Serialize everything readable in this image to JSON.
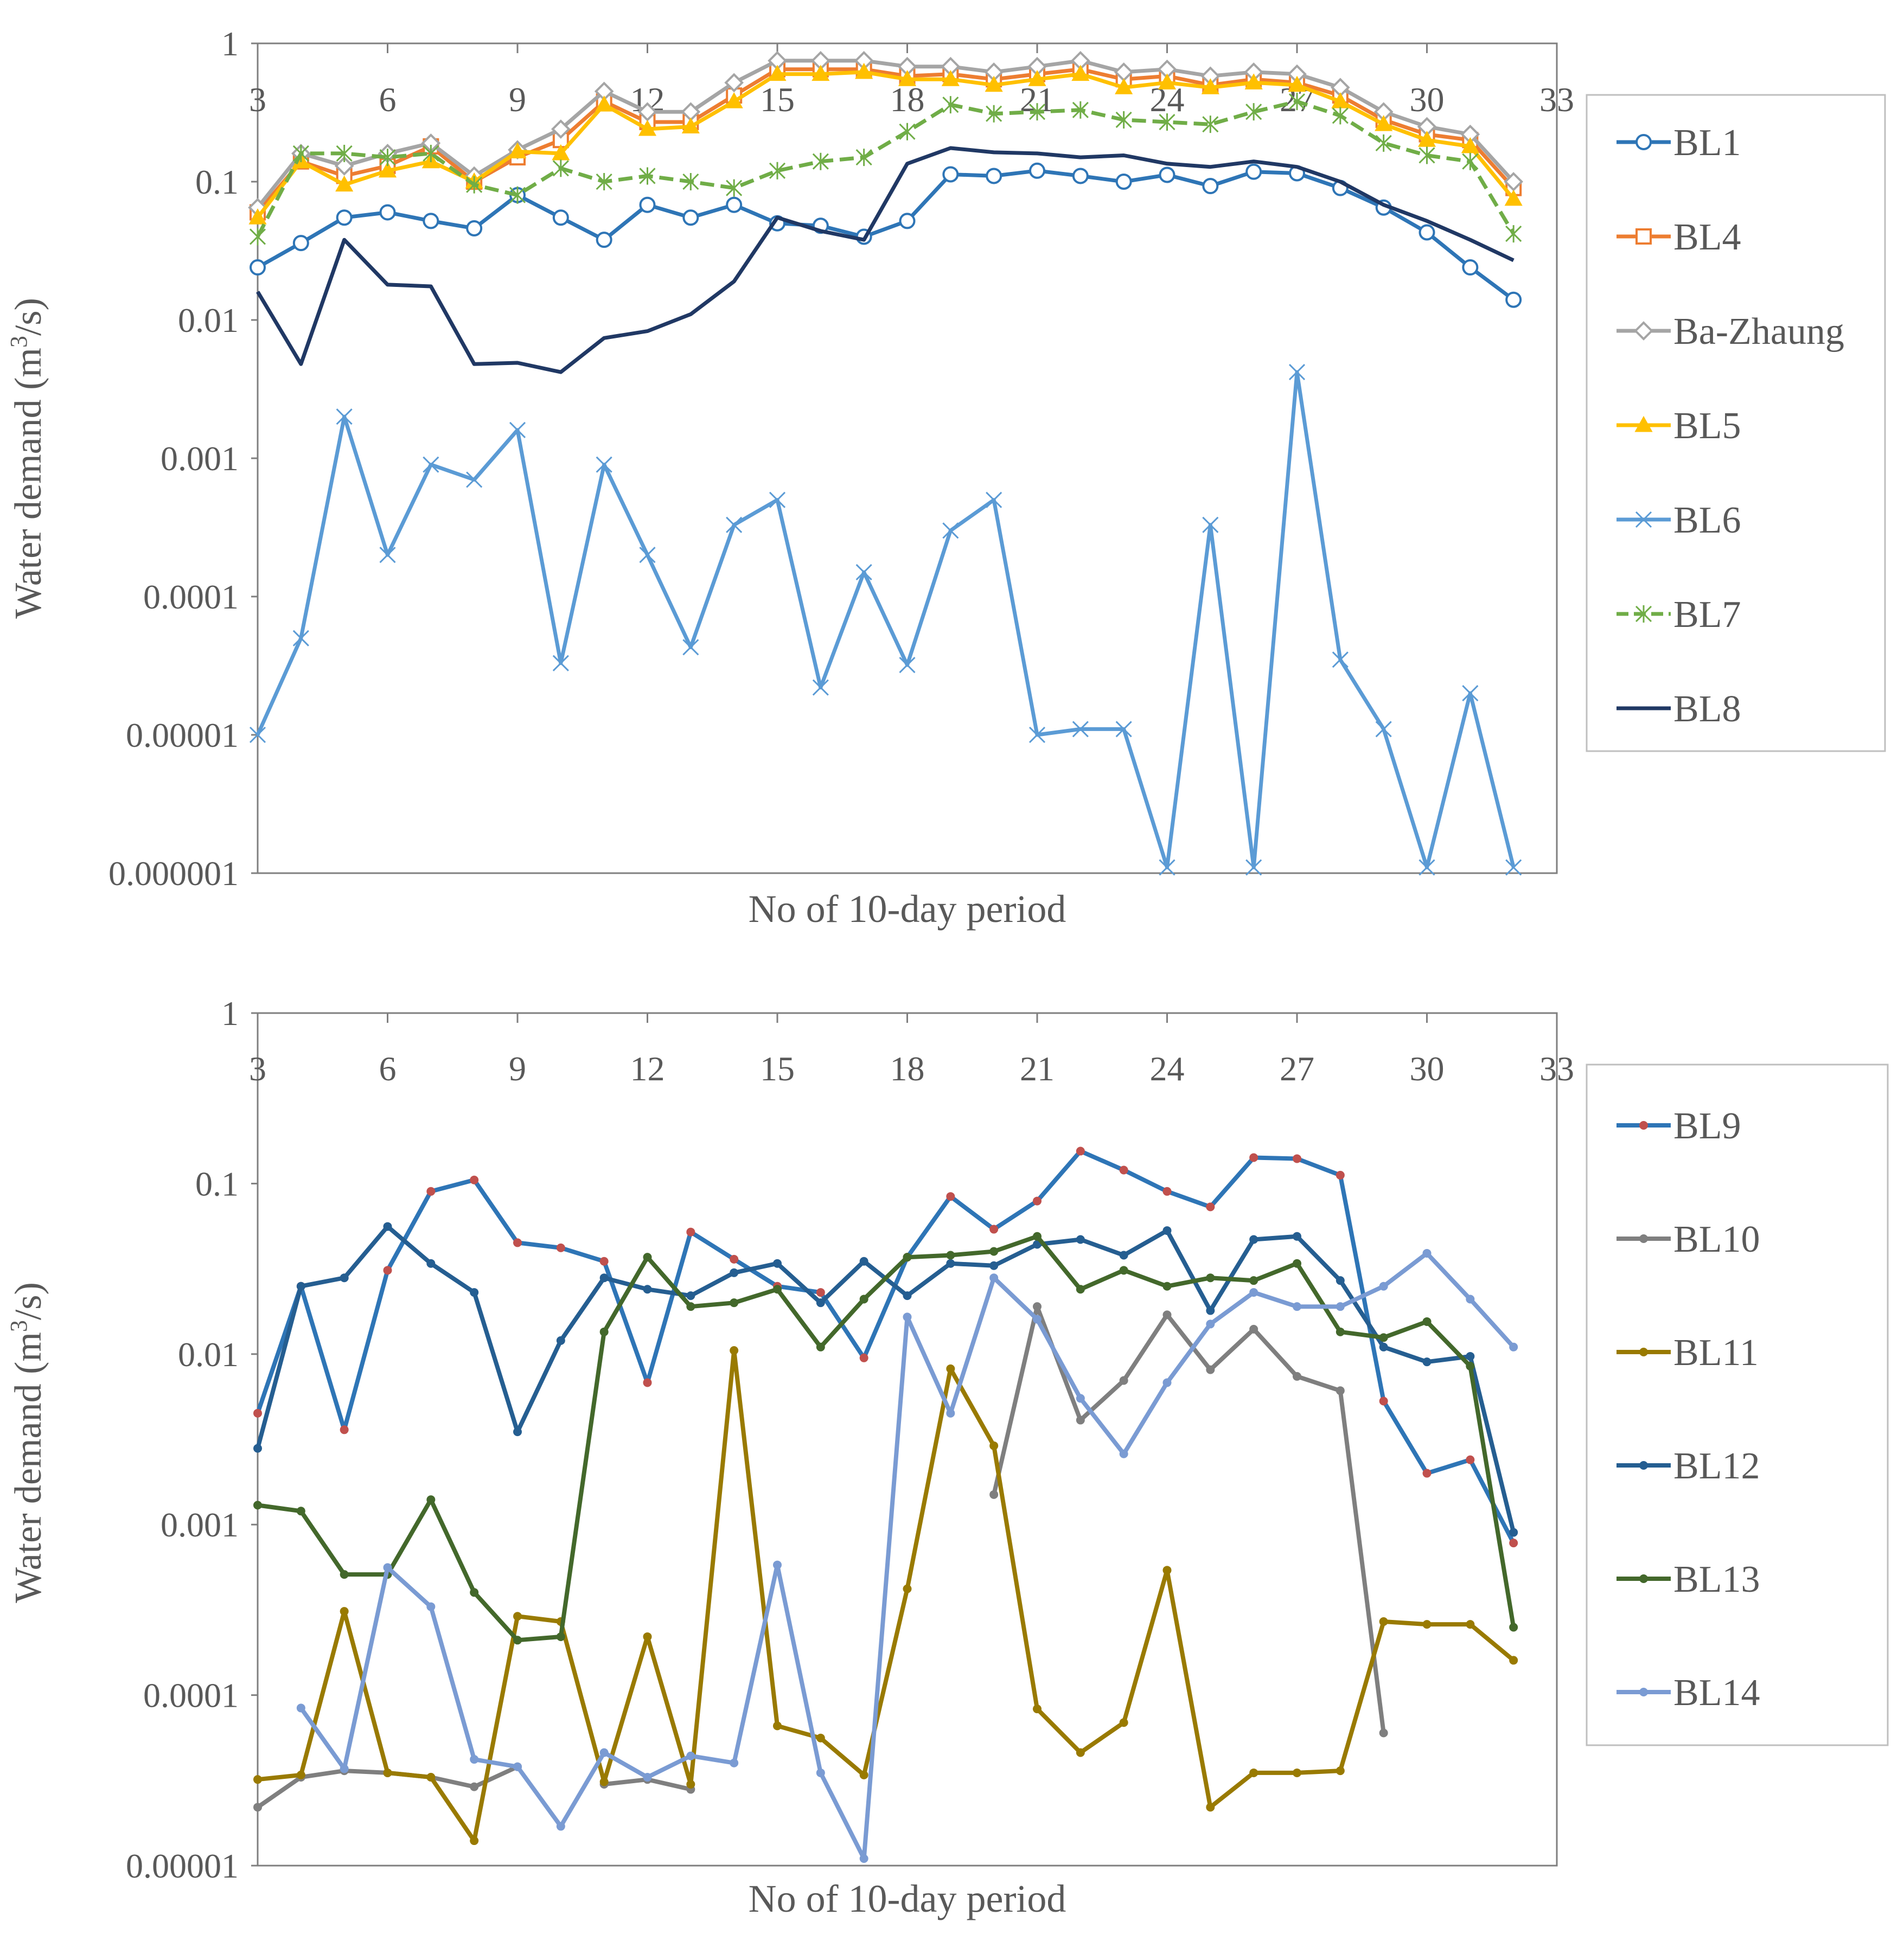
{
  "chart_data": [
    {
      "type": "line",
      "title": "",
      "xlabel": "No of 10-day period",
      "ylabel": "Water demand (m³/s)",
      "ylabel_main": "Water demand (m",
      "ylabel_sup": "3",
      "ylabel_end": "/s)",
      "yscale": "log",
      "ylim": [
        1e-06,
        1
      ],
      "xlim": [
        3,
        33
      ],
      "xticks": [
        3,
        6,
        9,
        12,
        15,
        18,
        21,
        24,
        27,
        30,
        33
      ],
      "xtick_labels": [
        "3",
        "6",
        "9",
        "12",
        "15",
        "18",
        "21",
        "24",
        "27",
        "30",
        "33"
      ],
      "yticks": [
        1e-06,
        1e-05,
        0.0001,
        0.001,
        0.01,
        0.1,
        1
      ],
      "ytick_labels": [
        "0.000001",
        "0.00001",
        "0.0001",
        "0.001",
        "0.01",
        "0.1",
        "1"
      ],
      "x": [
        3,
        4,
        5,
        6,
        7,
        8,
        9,
        10,
        11,
        12,
        13,
        14,
        15,
        16,
        17,
        18,
        19,
        20,
        21,
        22,
        23,
        24,
        25,
        26,
        27,
        28,
        29,
        30,
        31,
        32
      ],
      "series": [
        {
          "name": "BL1",
          "color": "#2e75b6",
          "marker": "circle",
          "values": [
            0.024,
            0.036,
            0.055,
            0.06,
            0.052,
            0.046,
            0.08,
            0.055,
            0.038,
            0.068,
            0.055,
            0.068,
            0.05,
            0.048,
            0.04,
            0.052,
            0.113,
            0.11,
            0.12,
            0.11,
            0.1,
            0.112,
            0.093,
            0.118,
            0.115,
            0.09,
            0.065,
            0.043,
            0.024,
            0.014
          ]
        },
        {
          "name": "BL4",
          "color": "#ed7d31",
          "marker": "square",
          "values": [
            0.06,
            0.14,
            0.11,
            0.13,
            0.18,
            0.1,
            0.15,
            0.2,
            0.38,
            0.27,
            0.27,
            0.42,
            0.65,
            0.65,
            0.65,
            0.58,
            0.6,
            0.55,
            0.6,
            0.65,
            0.55,
            0.58,
            0.5,
            0.55,
            0.52,
            0.42,
            0.28,
            0.22,
            0.2,
            0.09
          ]
        },
        {
          "name": "Ba-Zhaung",
          "color": "#a5a5a5",
          "marker": "diamond",
          "values": [
            0.065,
            0.16,
            0.13,
            0.16,
            0.19,
            0.11,
            0.17,
            0.24,
            0.45,
            0.32,
            0.32,
            0.52,
            0.75,
            0.75,
            0.75,
            0.68,
            0.68,
            0.62,
            0.68,
            0.75,
            0.62,
            0.65,
            0.58,
            0.62,
            0.6,
            0.48,
            0.32,
            0.25,
            0.22,
            0.1
          ]
        },
        {
          "name": "BL5",
          "color": "#ffc000",
          "marker": "triangle",
          "values": [
            0.055,
            0.14,
            0.095,
            0.12,
            0.14,
            0.1,
            0.165,
            0.16,
            0.36,
            0.24,
            0.25,
            0.38,
            0.6,
            0.6,
            0.62,
            0.55,
            0.55,
            0.5,
            0.55,
            0.6,
            0.48,
            0.52,
            0.48,
            0.52,
            0.5,
            0.38,
            0.26,
            0.2,
            0.18,
            0.075
          ]
        },
        {
          "name": "BL6",
          "color": "#5b9bd5",
          "marker": "x",
          "values": [
            1e-05,
            5e-05,
            0.002,
            0.0002,
            0.0009,
            0.0007,
            0.0016,
            3.3e-05,
            0.0009,
            0.0002,
            4.3e-05,
            0.00033,
            0.0005,
            2.2e-05,
            0.00015,
            3.2e-05,
            0.0003,
            0.0005,
            1e-05,
            1.1e-05,
            1.1e-05,
            1.1e-06,
            0.00033,
            1.1e-06,
            0.0042,
            3.5e-05,
            1.1e-05,
            1.1e-06,
            2e-05,
            1.1e-06
          ]
        },
        {
          "name": "BL7",
          "color": "#70ad47",
          "marker": "star",
          "dashed": true,
          "values": [
            0.04,
            0.16,
            0.16,
            0.15,
            0.16,
            0.095,
            0.08,
            0.125,
            0.1,
            0.11,
            0.1,
            0.09,
            0.12,
            0.14,
            0.15,
            0.23,
            0.36,
            0.31,
            0.32,
            0.33,
            0.28,
            0.27,
            0.26,
            0.32,
            0.38,
            0.3,
            0.19,
            0.155,
            0.14,
            0.042
          ]
        },
        {
          "name": "BL8",
          "color": "#203864",
          "marker": "none",
          "values": [
            0.016,
            0.0048,
            0.038,
            0.018,
            0.0175,
            0.0048,
            0.0049,
            0.0042,
            0.0074,
            0.0083,
            0.011,
            0.019,
            0.055,
            0.044,
            0.038,
            0.135,
            0.175,
            0.163,
            0.16,
            0.15,
            0.155,
            0.135,
            0.128,
            0.14,
            0.128,
            0.1,
            0.068,
            0.052,
            0.038,
            0.027
          ]
        }
      ]
    },
    {
      "type": "line",
      "title": "",
      "xlabel": "No of 10-day period",
      "ylabel": "Water demand (m³/s)",
      "ylabel_main": "Water demand (m",
      "ylabel_sup": "3",
      "ylabel_end": "/s)",
      "yscale": "log",
      "ylim": [
        1e-05,
        1
      ],
      "xlim": [
        3,
        33
      ],
      "xticks": [
        3,
        6,
        9,
        12,
        15,
        18,
        21,
        24,
        27,
        30,
        33
      ],
      "xtick_labels": [
        "3",
        "6",
        "9",
        "12",
        "15",
        "18",
        "21",
        "24",
        "27",
        "30",
        "33"
      ],
      "yticks": [
        1e-05,
        0.0001,
        0.001,
        0.01,
        0.1,
        1
      ],
      "ytick_labels": [
        "0.00001",
        "0.0001",
        "0.001",
        "0.01",
        "0.1",
        "1"
      ],
      "x": [
        3,
        4,
        5,
        6,
        7,
        8,
        9,
        10,
        11,
        12,
        13,
        14,
        15,
        16,
        17,
        18,
        19,
        20,
        21,
        22,
        23,
        24,
        25,
        26,
        27,
        28,
        29,
        30,
        31,
        32
      ],
      "series": [
        {
          "name": "BL9",
          "color": "#2e75b6",
          "marker_color": "#c0504d",
          "values": [
            0.0045,
            0.025,
            0.0036,
            0.031,
            0.09,
            0.105,
            0.045,
            0.042,
            0.035,
            0.0068,
            0.052,
            0.036,
            0.025,
            0.023,
            0.0095,
            0.037,
            0.084,
            0.054,
            0.079,
            0.155,
            0.12,
            0.09,
            0.073,
            0.142,
            0.14,
            0.112,
            0.0053,
            0.002,
            0.0024,
            0.00078
          ]
        },
        {
          "name": "BL10",
          "color": "#7f7f7f",
          "values": [
            2.2e-05,
            3.3e-05,
            3.6e-05,
            3.5e-05,
            3.3e-05,
            2.9e-05,
            3.8e-05,
            null,
            3e-05,
            3.2e-05,
            2.8e-05,
            null,
            null,
            null,
            null,
            null,
            null,
            0.0015,
            0.019,
            0.0041,
            0.007,
            0.017,
            0.0081,
            0.014,
            0.0074,
            0.0061,
            6e-05,
            null,
            null,
            null
          ]
        },
        {
          "name": "BL11",
          "color": "#997a00",
          "values": [
            3.2e-05,
            3.4e-05,
            0.00031,
            3.5e-05,
            3.3e-05,
            1.4e-05,
            0.00029,
            0.00027,
            3.1e-05,
            0.00022,
            3e-05,
            0.0105,
            6.6e-05,
            5.6e-05,
            3.4e-05,
            0.00042,
            0.0082,
            0.0029,
            8.3e-05,
            4.6e-05,
            6.9e-05,
            0.00054,
            2.2e-05,
            3.5e-05,
            3.5e-05,
            3.6e-05,
            0.00027,
            0.00026,
            0.00026,
            0.00016
          ]
        },
        {
          "name": "BL12",
          "color": "#255e91",
          "values": [
            0.0028,
            0.025,
            0.028,
            0.056,
            0.034,
            0.023,
            0.0035,
            0.012,
            0.028,
            0.024,
            0.022,
            0.03,
            0.034,
            0.02,
            0.035,
            0.022,
            0.034,
            0.033,
            0.044,
            0.047,
            0.038,
            0.053,
            0.018,
            0.047,
            0.049,
            0.027,
            0.011,
            0.009,
            0.0097,
            0.0009
          ]
        },
        {
          "name": "BL13",
          "color": "#43682b",
          "values": [
            0.0013,
            0.0012,
            0.00051,
            0.00051,
            0.0014,
            0.0004,
            0.00021,
            0.00022,
            0.0135,
            0.037,
            0.019,
            0.02,
            0.024,
            0.011,
            0.021,
            0.037,
            0.038,
            0.04,
            0.049,
            0.024,
            0.031,
            0.025,
            0.028,
            0.027,
            0.034,
            0.0135,
            0.0125,
            0.0155,
            0.0085,
            0.00025
          ]
        },
        {
          "name": "BL14",
          "color": "#7a9bd3",
          "values": [
            null,
            8.4e-05,
            3.7e-05,
            0.00056,
            0.00033,
            4.2e-05,
            3.8e-05,
            1.7e-05,
            4.6e-05,
            3.3e-05,
            4.4e-05,
            4e-05,
            0.00058,
            3.5e-05,
            1.1e-05,
            0.0165,
            0.0045,
            0.028,
            0.016,
            0.0055,
            0.0026,
            0.0068,
            0.015,
            0.023,
            0.019,
            0.019,
            0.025,
            0.039,
            0.021,
            0.011
          ]
        }
      ]
    }
  ]
}
